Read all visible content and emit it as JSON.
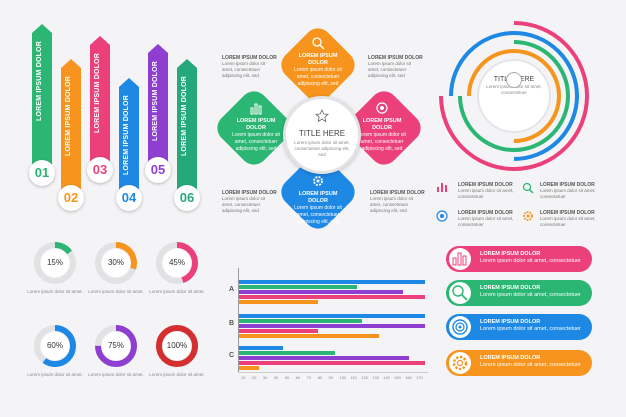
{
  "banners": [
    {
      "num": "01",
      "label": "LOREM IPSUM DOLOR",
      "color": "#2bb673",
      "num_color": "#2bb673"
    },
    {
      "num": "02",
      "label": "LOREM IPSUM DOLOR",
      "color": "#f7941d",
      "num_color": "#f7941d"
    },
    {
      "num": "03",
      "label": "LOREM IPSUM DOLOR",
      "color": "#ec407a",
      "num_color": "#ec407a"
    },
    {
      "num": "04",
      "label": "LOREM IPSUM DOLOR",
      "color": "#1e88e5",
      "num_color": "#1e88e5"
    },
    {
      "num": "05",
      "label": "LOREM IPSUM DOLOR",
      "color": "#8e3fd1",
      "num_color": "#8e3fd1"
    },
    {
      "num": "06",
      "label": "LOREM IPSUM DOLOR",
      "color": "#26a97a",
      "num_color": "#26a97a"
    }
  ],
  "diamond": {
    "center_title": "TITLE HERE",
    "center_sub": "Lorem ipsum dolor sit amet, consectetuer adipiscing elit, sed",
    "petals": [
      {
        "title": "LOREM IPSUM DOLOR",
        "text": "Lorem ipsum dolor sit amet, consectetuer adipiscing elit, sed",
        "color": "#f7941d",
        "icon": "search-chart-icon"
      },
      {
        "title": "LOREM IPSUM DOLOR",
        "text": "Lorem ipsum dolor sit amet, consectetuer adipiscing elit, sed",
        "color": "#2bb673",
        "icon": "bar-chart-icon"
      },
      {
        "title": "LOREM IPSUM DOLOR",
        "text": "Lorem ipsum dolor sit amet, consectetuer adipiscing elit, sed",
        "color": "#ec407a",
        "icon": "target-icon"
      },
      {
        "title": "LOREM IPSUM DOLOR",
        "text": "Lorem ipsum dolor sit amet, consectetuer adipiscing elit, sed",
        "color": "#1e88e5",
        "icon": "gear-icon"
      }
    ],
    "side_texts": [
      {
        "title": "LOREM IPSUM DOLOR",
        "text": "Lorem ipsum dolor sit amet, consectetuer adipiscing elit, sed"
      },
      {
        "title": "LOREM IPSUM DOLOR",
        "text": "Lorem ipsum dolor sit amet, consectetuer adipiscing elit, sed"
      },
      {
        "title": "LOREM IPSUM DOLOR",
        "text": "Lorem ipsum dolor sit amet, consectetuer adipiscing elit, sed"
      },
      {
        "title": "LOREM IPSUM DOLOR",
        "text": "Lorem ipsum dolor sit amet, consectetuer adipiscing elit, sed"
      }
    ]
  },
  "rings": {
    "title": "TITLE HERE",
    "sub": "Lorem ipsum dolor sit amet, consectetuer",
    "colors": [
      "#ec407a",
      "#1e88e5",
      "#2bb673",
      "#f7941d"
    ]
  },
  "legend": [
    {
      "title": "LOREM IPSUM DOLOR",
      "text": "Lorem ipsum dolor sit amet, consectetuer",
      "icon": "bar-chart-icon",
      "color": "#ec407a"
    },
    {
      "title": "LOREM IPSUM DOLOR",
      "text": "Lorem ipsum dolor sit amet, consectetuer",
      "icon": "search-chart-icon",
      "color": "#2bb673"
    },
    {
      "title": "LOREM IPSUM DOLOR",
      "text": "Lorem ipsum dolor sit amet, consectetuer",
      "icon": "target-icon",
      "color": "#1e88e5"
    },
    {
      "title": "LOREM IPSUM DOLOR",
      "text": "Lorem ipsum dolor sit amet, consectetuer",
      "icon": "gear-icon",
      "color": "#f7941d"
    }
  ],
  "donuts": [
    {
      "label": "15%",
      "value": 15,
      "color": "#2bb673",
      "caption": "Lorem ipsum dolor sit amet."
    },
    {
      "label": "30%",
      "value": 30,
      "color": "#f7941d",
      "caption": "Lorem ipsum dolor sit amet."
    },
    {
      "label": "45%",
      "value": 45,
      "color": "#ec407a",
      "caption": "Lorem ipsum dolor sit amet."
    },
    {
      "label": "60%",
      "value": 60,
      "color": "#1e88e5",
      "caption": "Lorem ipsum dolor sit amet."
    },
    {
      "label": "75%",
      "value": 75,
      "color": "#8e3fd1",
      "caption": "Lorem ipsum dolor sit amet."
    },
    {
      "label": "100%",
      "value": 100,
      "color": "#d32f2f",
      "caption": "Lorem ipsum dolor sit amet."
    }
  ],
  "chart_data": {
    "type": "bar",
    "categories": [
      "A",
      "B",
      "C"
    ],
    "x_ticks": [
      "10",
      "20",
      "30",
      "40",
      "50",
      "60",
      "70",
      "80",
      "90",
      "100",
      "110",
      "120",
      "130",
      "140",
      "150",
      "160",
      "170"
    ],
    "xlim": [
      0,
      170
    ],
    "series_colors": [
      "#1e88e5",
      "#2bb673",
      "#8e3fd1",
      "#ec407a",
      "#f7941d"
    ],
    "values": [
      [
        170,
        108,
        150,
        172,
        72
      ],
      [
        172,
        112,
        170,
        72,
        128
      ],
      [
        40,
        88,
        155,
        178,
        18
      ]
    ]
  },
  "list_rows": [
    {
      "title": "LOREM IPSUM DOLOR",
      "text": "Lorem ipsum dolor sit amet, consectetuer",
      "color": "#ec407a",
      "icon": "bar-chart-icon"
    },
    {
      "title": "LOREM IPSUM DOLOR",
      "text": "Lorem ipsum dolor sit amet, consectetuer",
      "color": "#2bb673",
      "icon": "search-chart-icon"
    },
    {
      "title": "LOREM IPSUM DOLOR",
      "text": "Lorem ipsum dolor sit amet, consectetuer",
      "color": "#1e88e5",
      "icon": "target-icon"
    },
    {
      "title": "LOREM IPSUM DOLOR",
      "text": "Lorem ipsum dolor sit amet, consectetuer",
      "color": "#f7941d",
      "icon": "gear-icon"
    }
  ]
}
